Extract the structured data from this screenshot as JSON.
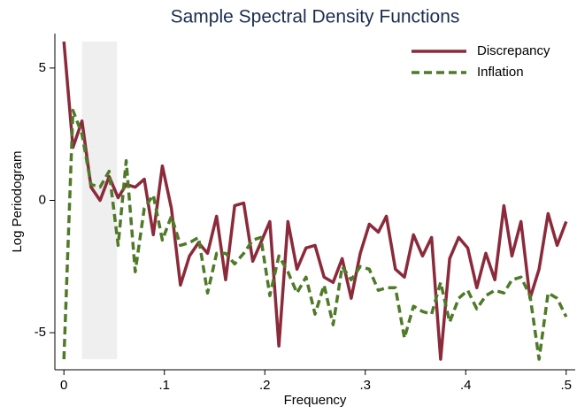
{
  "chart_data": {
    "type": "line",
    "title": "Sample Spectral Density Functions",
    "x_label": "Frequency",
    "y_label": "Log Periodogram",
    "x": [
      0,
      0.009,
      0.018,
      0.027,
      0.036,
      0.045,
      0.054,
      0.062,
      0.071,
      0.08,
      0.089,
      0.098,
      0.107,
      0.116,
      0.125,
      0.134,
      0.143,
      0.152,
      0.161,
      0.17,
      0.179,
      0.188,
      0.196,
      0.205,
      0.214,
      0.223,
      0.232,
      0.241,
      0.25,
      0.259,
      0.268,
      0.277,
      0.286,
      0.295,
      0.304,
      0.313,
      0.321,
      0.33,
      0.339,
      0.348,
      0.357,
      0.366,
      0.375,
      0.384,
      0.393,
      0.402,
      0.411,
      0.42,
      0.429,
      0.438,
      0.446,
      0.455,
      0.464,
      0.473,
      0.482,
      0.491,
      0.5
    ],
    "series": [
      {
        "name": "Discrepancy",
        "color": "#8b2a3a",
        "dash": false,
        "values": [
          6.0,
          2.0,
          3.0,
          0.5,
          0.0,
          0.9,
          0.1,
          0.6,
          0.5,
          0.8,
          -1.3,
          1.3,
          -0.3,
          -3.2,
          -2.1,
          -1.6,
          -2.0,
          -0.6,
          -3.0,
          -0.2,
          -0.1,
          -2.3,
          -1.6,
          -0.8,
          -5.5,
          -0.8,
          -2.6,
          -1.8,
          -1.7,
          -2.9,
          -3.1,
          -2.2,
          -3.7,
          -2.0,
          -0.9,
          -1.2,
          -0.6,
          -2.6,
          -2.9,
          -1.3,
          -2.1,
          -1.4,
          -6.0,
          -2.2,
          -1.4,
          -1.8,
          -3.3,
          -2.0,
          -3.0,
          -0.2,
          -2.1,
          -0.8,
          -3.7,
          -2.6,
          -0.5,
          -1.7,
          -0.8
        ]
      },
      {
        "name": "Inflation",
        "color": "#4f7a28",
        "dash": true,
        "values": [
          -6.0,
          3.4,
          2.5,
          0.6,
          0.5,
          1.1,
          -1.7,
          1.5,
          -2.7,
          -0.3,
          0.2,
          -1.5,
          -0.6,
          -1.7,
          -1.6,
          -1.4,
          -3.5,
          -2.0,
          -2.0,
          -2.4,
          -2.0,
          -1.5,
          -1.4,
          -3.6,
          -2.1,
          -2.7,
          -3.5,
          -2.9,
          -4.3,
          -3.2,
          -4.7,
          -2.5,
          -3.0,
          -2.5,
          -2.6,
          -3.4,
          -3.3,
          -3.3,
          -5.2,
          -4.0,
          -4.2,
          -4.3,
          -3.1,
          -4.6,
          -3.7,
          -3.4,
          -4.1,
          -3.6,
          -3.4,
          -3.5,
          -3.0,
          -2.9,
          -3.6,
          -6.0,
          -3.5,
          -3.7,
          -4.4
        ]
      }
    ],
    "highlight": {
      "xlim": [
        0.018,
        0.053
      ],
      "ylim": [
        -6,
        6
      ],
      "color": "#efefef"
    },
    "xlim": [
      -0.009,
      0.509
    ],
    "ylim": [
      -6.4,
      6.3
    ],
    "xticks": [
      {
        "value": 0,
        "label": "0"
      },
      {
        "value": 0.1,
        "label": ".1"
      },
      {
        "value": 0.2,
        "label": ".2"
      },
      {
        "value": 0.3,
        "label": ".3"
      },
      {
        "value": 0.4,
        "label": ".4"
      },
      {
        "value": 0.5,
        "label": ".5"
      }
    ],
    "yticks": [
      5,
      0,
      -5
    ],
    "grid": false,
    "legend": "top-right"
  }
}
